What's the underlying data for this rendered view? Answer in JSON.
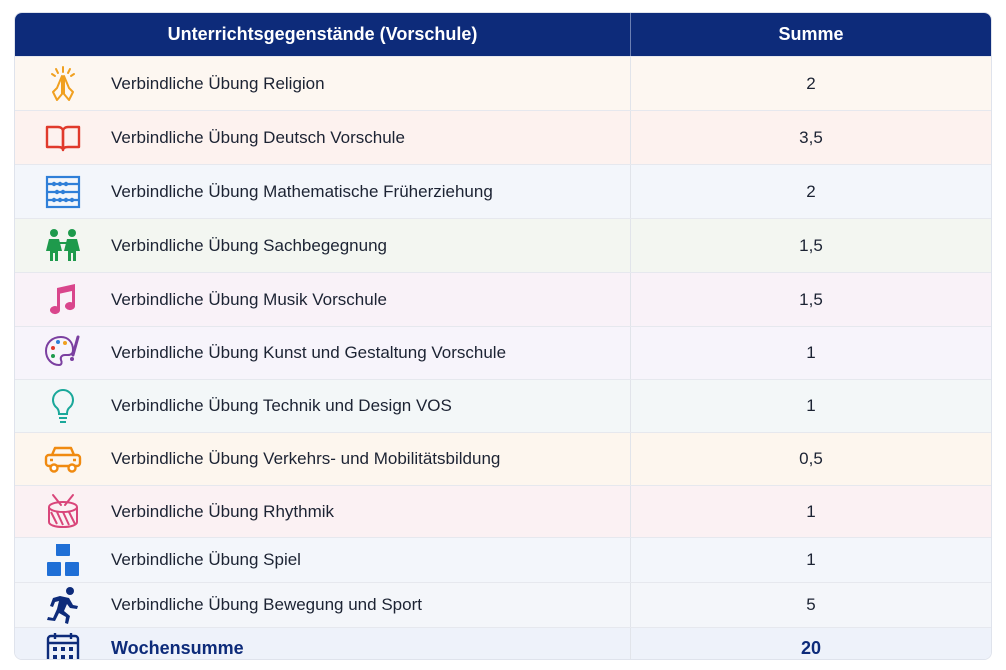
{
  "table": {
    "header": {
      "subject": "Unterrichtsgegenstände (Vorschule)",
      "sum": "Summe"
    },
    "rows": [
      {
        "icon": "praying-hands-icon",
        "label": "Verbindliche Übung Religion",
        "value": "2",
        "bg": "#fdf7f1"
      },
      {
        "icon": "book-icon",
        "label": "Verbindliche Übung Deutsch Vorschule",
        "value": "3,5",
        "bg": "#fdf2ef"
      },
      {
        "icon": "abacus-icon",
        "label": "Verbindliche Übung Mathematische Früherziehung",
        "value": "2",
        "bg": "#f3f6fb"
      },
      {
        "icon": "children-icon",
        "label": "Verbindliche Übung Sachbegegnung",
        "value": "1,5",
        "bg": "#f3f6f1"
      },
      {
        "icon": "music-note-icon",
        "label": "Verbindliche Übung Musik Vorschule",
        "value": "1,5",
        "bg": "#f9f2f8"
      },
      {
        "icon": "palette-icon",
        "label": "Verbindliche Übung Kunst und Gestaltung Vorschule",
        "value": "1",
        "bg": "#f7f4fb"
      },
      {
        "icon": "lightbulb-icon",
        "label": "Verbindliche Übung Technik und Design VOS",
        "value": "1",
        "bg": "#f3f7f8"
      },
      {
        "icon": "car-icon",
        "label": "Verbindliche Übung Verkehrs- und Mobilitätsbildung",
        "value": "0,5",
        "bg": "#fdf6ee"
      },
      {
        "icon": "drum-icon",
        "label": "Verbindliche Übung Rhythmik",
        "value": "1",
        "bg": "#fbf1f3"
      },
      {
        "icon": "blocks-icon",
        "label": "Verbindliche Übung Spiel",
        "value": "1",
        "bg": "#f3f6fb"
      },
      {
        "icon": "runner-icon",
        "label": "Verbindliche Übung Bewegung und Sport",
        "value": "5",
        "bg": "#f4f6fa"
      }
    ],
    "total": {
      "icon": "calendar-icon",
      "label": "Wochensumme",
      "value": "20",
      "bg": "#eef2fa"
    }
  },
  "colors": {
    "header_bg": "#0d2b7a",
    "total_text": "#0d2b7a"
  }
}
